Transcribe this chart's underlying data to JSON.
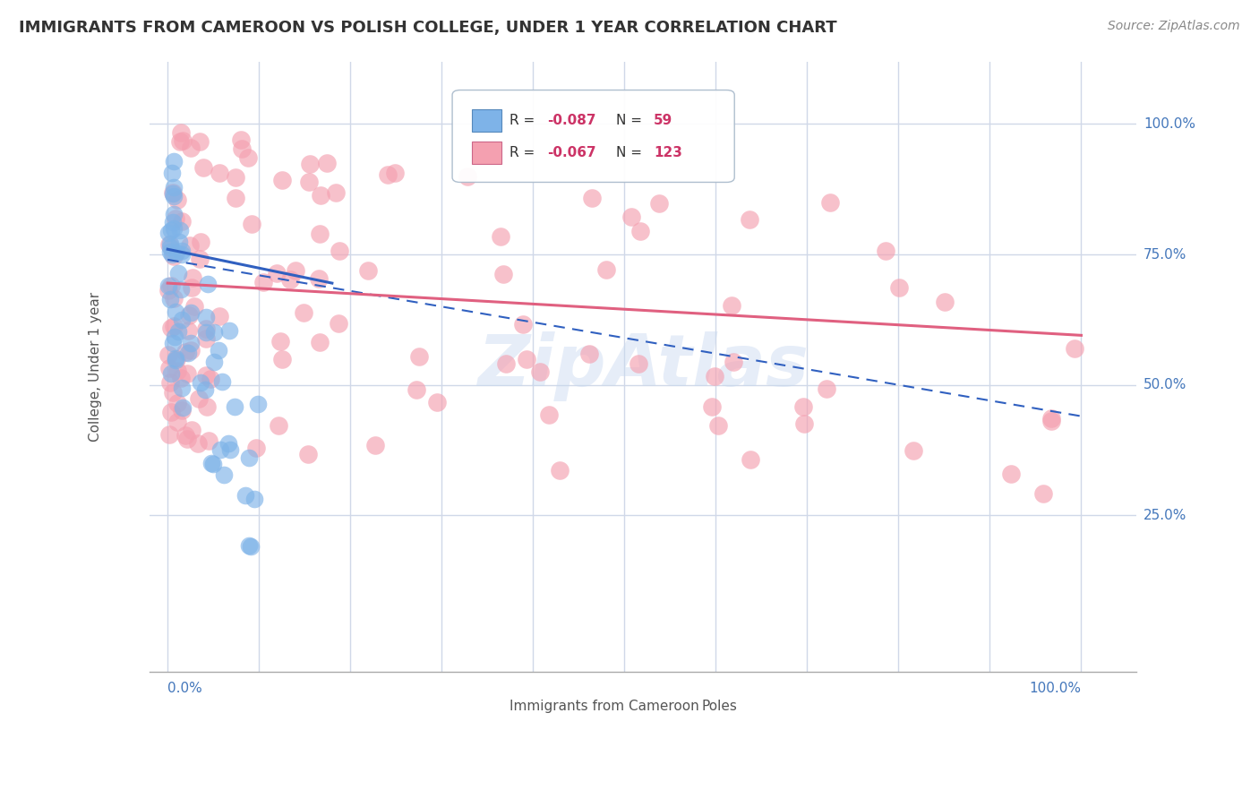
{
  "title": "IMMIGRANTS FROM CAMEROON VS POLISH COLLEGE, UNDER 1 YEAR CORRELATION CHART",
  "source": "Source: ZipAtlas.com",
  "ylabel": "College, Under 1 year",
  "legend_blue_R": "-0.087",
  "legend_blue_N": "59",
  "legend_pink_R": "-0.067",
  "legend_pink_N": "123",
  "blue_color": "#7eb3e8",
  "pink_color": "#f4a0b0",
  "blue_line_color": "#3060c0",
  "pink_line_color": "#e06080",
  "background_color": "#ffffff",
  "grid_color": "#d0d8e8",
  "watermark": "ZipAtlas",
  "label_color": "#4477bb",
  "text_color": "#555555",
  "source_color": "#888888",
  "title_color": "#333333"
}
